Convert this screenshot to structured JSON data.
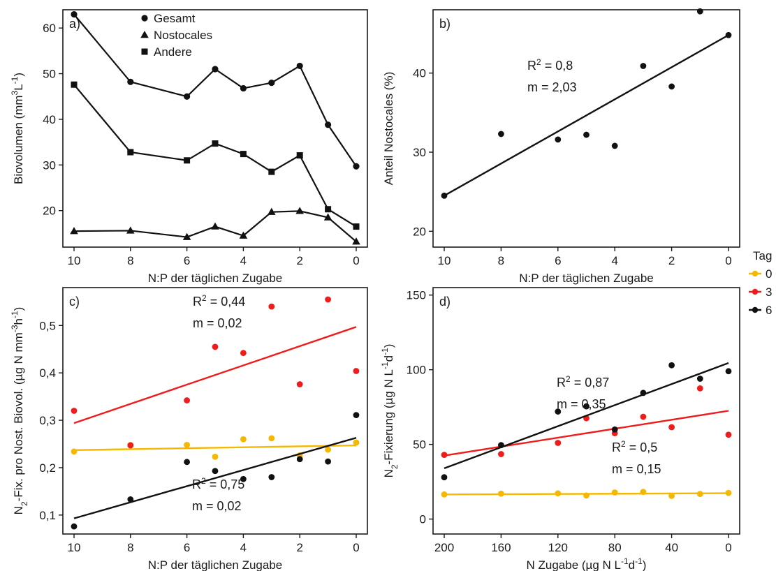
{
  "figure": {
    "legend": {
      "title": "Tag",
      "entries": [
        {
          "label": "0",
          "color": "#f5b800"
        },
        {
          "label": "3",
          "color": "#ee1c1c"
        },
        {
          "label": "6",
          "color": "#111111"
        }
      ],
      "placement": "right"
    }
  },
  "chart_data": [
    {
      "panel": "a)",
      "type": "line",
      "xlabel": "N:P der täglichen Zugabe",
      "ylabel": "Biovolumen (mm³L⁻¹)",
      "xlim": [
        10,
        0
      ],
      "x_reversed": true,
      "ylim": [
        12,
        64
      ],
      "xticks": [
        10,
        8,
        6,
        4,
        2,
        0
      ],
      "yticks": [
        20,
        30,
        40,
        50,
        60
      ],
      "x": [
        10,
        8,
        6,
        5,
        4,
        3,
        2,
        1,
        0
      ],
      "series": [
        {
          "name": "Gesamt",
          "marker": "circle",
          "values": [
            63.0,
            48.2,
            45.0,
            51.0,
            46.8,
            48.0,
            51.7,
            38.8,
            29.7
          ]
        },
        {
          "name": "Nostocales",
          "marker": "triangle",
          "values": [
            15.5,
            15.6,
            14.2,
            16.5,
            14.5,
            19.7,
            19.9,
            18.5,
            13.2
          ]
        },
        {
          "name": "Andere",
          "marker": "square",
          "values": [
            47.6,
            32.8,
            31.0,
            34.7,
            32.4,
            28.5,
            32.1,
            20.3,
            16.5
          ]
        }
      ],
      "grid": false
    },
    {
      "panel": "b)",
      "type": "scatter",
      "xlabel": "N:P der täglichen Zugabe",
      "ylabel": "Anteil Nostocales (%)",
      "xlim": [
        10,
        0
      ],
      "x_reversed": true,
      "ylim": [
        18,
        48
      ],
      "xticks": [
        10,
        8,
        6,
        4,
        2,
        0
      ],
      "yticks": [
        20,
        30,
        40
      ],
      "series": [
        {
          "name": "",
          "color": "#111111",
          "x": [
            10,
            8,
            6,
            5,
            4,
            3,
            2,
            1,
            0
          ],
          "y": [
            24.5,
            32.3,
            31.6,
            32.2,
            30.8,
            40.9,
            38.3,
            47.8,
            44.8
          ],
          "fit": {
            "x": [
              10,
              0
            ],
            "y": [
              24.5,
              44.8
            ]
          }
        }
      ],
      "annotations": [
        {
          "r2": "0,8",
          "m": "2,03"
        }
      ],
      "grid": false
    },
    {
      "panel": "c)",
      "type": "scatter",
      "xlabel": "N:P der täglichen Zugabe",
      "ylabel": "N₂-Fix. pro Nost. Biovol. (µg N mm⁻³h⁻¹)",
      "xlim": [
        10,
        0
      ],
      "x_reversed": true,
      "ylim": [
        0.06,
        0.58
      ],
      "xticks": [
        10,
        8,
        6,
        4,
        2,
        0
      ],
      "yticks": [
        0.1,
        0.2,
        0.3,
        0.4,
        0.5
      ],
      "series": [
        {
          "name": "0",
          "color": "#f5b800",
          "x": [
            10,
            8,
            6,
            5,
            4,
            3,
            2,
            1,
            0
          ],
          "y": [
            0.234,
            0.248,
            0.248,
            0.223,
            0.26,
            0.262,
            0.226,
            0.238,
            0.253
          ],
          "fit": {
            "x": [
              10,
              0
            ],
            "y": [
              0.237,
              0.247
            ]
          }
        },
        {
          "name": "3",
          "color": "#ee1c1c",
          "x": [
            10,
            8,
            6,
            5,
            4,
            3,
            2,
            1,
            0
          ],
          "y": [
            0.32,
            0.247,
            0.342,
            0.455,
            0.442,
            0.54,
            0.376,
            0.555,
            0.404
          ],
          "fit": {
            "x": [
              10,
              0
            ],
            "y": [
              0.294,
              0.497
            ]
          }
        },
        {
          "name": "6",
          "color": "#111111",
          "x": [
            10,
            8,
            6,
            5,
            4,
            3,
            2,
            1,
            0
          ],
          "y": [
            0.076,
            0.133,
            0.212,
            0.193,
            0.176,
            0.18,
            0.218,
            0.213,
            0.311
          ],
          "fit": {
            "x": [
              10,
              0
            ],
            "y": [
              0.093,
              0.263
            ]
          }
        }
      ],
      "annotations": [
        {
          "r2": "0,44",
          "m": "0,02"
        },
        {
          "r2": "0,75",
          "m": "0,02"
        }
      ],
      "grid": false
    },
    {
      "panel": "d)",
      "type": "scatter",
      "xlabel": "N Zugabe (µg N L⁻¹d⁻¹)",
      "ylabel": "N₂-Fixierung (µg N L⁻¹d⁻¹)",
      "xlim": [
        200,
        0
      ],
      "x_reversed": true,
      "ylim": [
        -10,
        155
      ],
      "xticks": [
        200,
        160,
        120,
        80,
        40,
        0
      ],
      "yticks": [
        0,
        50,
        100,
        150
      ],
      "series": [
        {
          "name": "0",
          "color": "#f5b800",
          "x": [
            200,
            160,
            120,
            100,
            80,
            60,
            40,
            20,
            0
          ],
          "y": [
            16.5,
            17.0,
            17.2,
            15.8,
            17.8,
            18.2,
            15.5,
            16.8,
            17.5
          ],
          "fit": {
            "x": [
              200,
              0
            ],
            "y": [
              16.5,
              17.3
            ]
          }
        },
        {
          "name": "3",
          "color": "#ee1c1c",
          "x": [
            200,
            160,
            120,
            100,
            80,
            60,
            40,
            20,
            0
          ],
          "y": [
            43.0,
            43.5,
            51.0,
            67.5,
            57.5,
            68.5,
            61.5,
            87.5,
            56.5
          ],
          "fit": {
            "x": [
              200,
              0
            ],
            "y": [
              42.5,
              72.5
            ]
          }
        },
        {
          "name": "6",
          "color": "#111111",
          "x": [
            200,
            160,
            120,
            100,
            80,
            60,
            40,
            20,
            0
          ],
          "y": [
            28.0,
            49.5,
            72.0,
            75.5,
            60.0,
            84.5,
            103.0,
            94.0,
            99.0
          ],
          "fit": {
            "x": [
              200,
              0
            ],
            "y": [
              34.0,
              104.5
            ]
          }
        }
      ],
      "annotations": [
        {
          "r2": "0,87",
          "m": "0,35"
        },
        {
          "r2": "0,5",
          "m": "0,15"
        }
      ],
      "grid": false
    }
  ]
}
